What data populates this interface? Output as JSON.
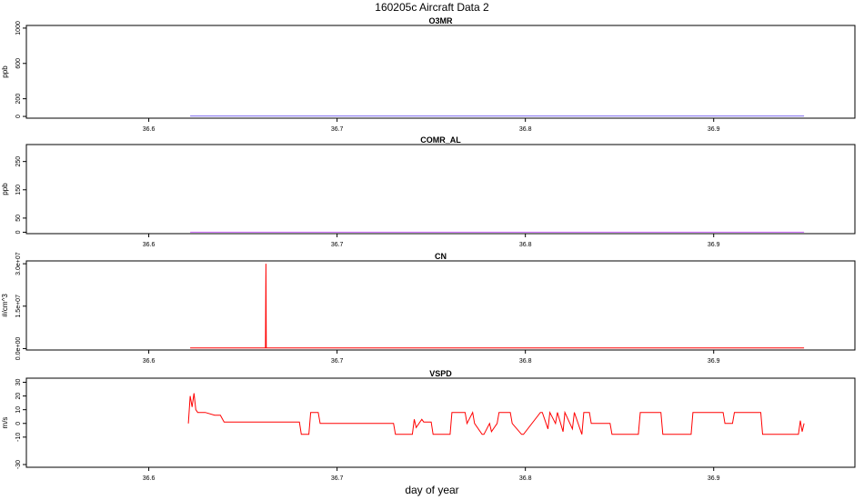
{
  "figure": {
    "title": "160205c   Aircraft Data 2",
    "xlabel": "day of year"
  },
  "chart_data": [
    {
      "type": "line",
      "title": "O3MR",
      "ylabel": "ppb",
      "x_ticks": [
        "36.6",
        "36.7",
        "36.8",
        "36.9"
      ],
      "x_tick_values": [
        36.6,
        36.7,
        36.8,
        36.9
      ],
      "y_ticks": [
        "0",
        "200",
        "600",
        "1000"
      ],
      "y_tick_values": [
        0,
        200,
        600,
        1000
      ],
      "xlim": [
        36.535,
        36.975
      ],
      "ylim": [
        -20,
        1030
      ],
      "color": "#7b68ee",
      "series": [
        {
          "x": [
            36.622,
            36.948
          ],
          "y": [
            5,
            5
          ]
        }
      ]
    },
    {
      "type": "line",
      "title": "COMR_AL",
      "ylabel": "ppb",
      "x_ticks": [
        "36.6",
        "36.7",
        "36.8",
        "36.9"
      ],
      "x_tick_values": [
        36.6,
        36.7,
        36.8,
        36.9
      ],
      "y_ticks": [
        "0",
        "50",
        "150",
        "250"
      ],
      "y_tick_values": [
        0,
        50,
        150,
        250
      ],
      "xlim": [
        36.535,
        36.975
      ],
      "ylim": [
        -5,
        310
      ],
      "color": "#cc66ff",
      "series": [
        {
          "x": [
            36.622,
            36.948
          ],
          "y": [
            0,
            0
          ]
        }
      ]
    },
    {
      "type": "line",
      "title": "CN",
      "ylabel": "#/cm^3",
      "x_ticks": [
        "36.6",
        "36.7",
        "36.8",
        "36.9"
      ],
      "x_tick_values": [
        36.6,
        36.7,
        36.8,
        36.9
      ],
      "y_ticks": [
        "0.0e+00",
        "1.5e+07",
        "3.0e+07"
      ],
      "y_tick_values": [
        0,
        15000000,
        30000000
      ],
      "xlim": [
        36.535,
        36.975
      ],
      "ylim": [
        -500000,
        31000000
      ],
      "color": "#ff0000",
      "series": [
        {
          "x": [
            36.622,
            36.662,
            36.6622,
            36.6624,
            36.948
          ],
          "y": [
            200000,
            200000,
            30000000,
            200000,
            200000
          ]
        }
      ]
    },
    {
      "type": "line",
      "title": "VSPD",
      "ylabel": "m/s",
      "x_ticks": [
        "36.6",
        "36.7",
        "36.8",
        "36.9"
      ],
      "x_tick_values": [
        36.6,
        36.7,
        36.8,
        36.9
      ],
      "y_ticks": [
        "-30",
        "-10",
        "0",
        "10",
        "20",
        "30"
      ],
      "y_tick_values": [
        -30,
        -10,
        0,
        10,
        20,
        30
      ],
      "xlim": [
        36.535,
        36.975
      ],
      "ylim": [
        -32,
        33
      ],
      "color": "#ff0000",
      "series": [
        {
          "x": [
            36.621,
            36.622,
            36.623,
            36.624,
            36.625,
            36.626,
            36.627,
            36.63,
            36.635,
            36.638,
            36.64,
            36.68,
            36.681,
            36.685,
            36.686,
            36.69,
            36.691,
            36.695,
            36.73,
            36.731,
            36.74,
            36.741,
            36.742,
            36.745,
            36.746,
            36.75,
            36.751,
            36.76,
            36.761,
            36.768,
            36.769,
            36.772,
            36.773,
            36.777,
            36.778,
            36.781,
            36.782,
            36.785,
            36.786,
            36.792,
            36.793,
            36.798,
            36.799,
            36.808,
            36.809,
            36.812,
            36.813,
            36.816,
            36.817,
            36.82,
            36.821,
            36.825,
            36.826,
            36.83,
            36.831,
            36.834,
            36.835,
            36.845,
            36.846,
            36.86,
            36.861,
            36.872,
            36.873,
            36.888,
            36.889,
            36.905,
            36.906,
            36.91,
            36.911,
            36.925,
            36.926,
            36.945,
            36.946,
            36.947,
            36.948
          ],
          "y": [
            0,
            20,
            12,
            22,
            10,
            8,
            8,
            8,
            6,
            6,
            1,
            1,
            -8,
            -8,
            8,
            8,
            0,
            0,
            0,
            -8,
            -8,
            3,
            -3,
            3,
            1,
            1,
            -8,
            -8,
            8,
            8,
            0,
            8,
            0,
            -8,
            -8,
            0,
            -6,
            0,
            8,
            8,
            0,
            -8,
            -8,
            8,
            8,
            -4,
            8,
            0,
            8,
            -6,
            8,
            -4,
            8,
            -8,
            8,
            8,
            0,
            0,
            -8,
            -8,
            8,
            8,
            -8,
            -8,
            8,
            8,
            0,
            0,
            8,
            8,
            -8,
            -8,
            2,
            -6,
            0
          ]
        }
      ]
    }
  ]
}
